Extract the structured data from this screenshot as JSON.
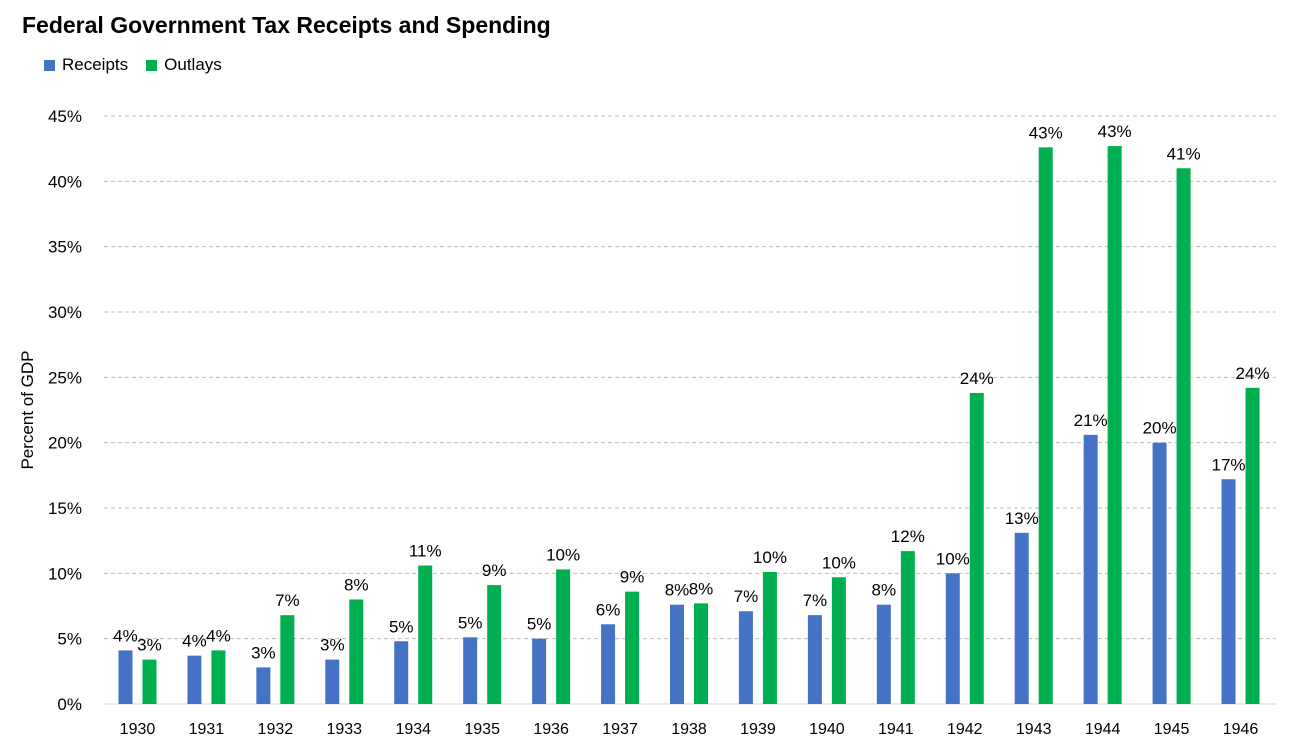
{
  "colors": {
    "receipts": "#4472C4",
    "outlays": "#00B050",
    "grid": "#BFBFBF"
  },
  "chart_data": {
    "type": "bar",
    "title": "Federal Government Tax Receipts and Spending",
    "ylabel": "Percent of GDP",
    "xlabel": "",
    "ylim": [
      0,
      45
    ],
    "yticks": [
      "0%",
      "5%",
      "10%",
      "15%",
      "20%",
      "25%",
      "30%",
      "35%",
      "40%",
      "45%"
    ],
    "grid": true,
    "legend_position": "top-left",
    "categories": [
      "1930",
      "1931",
      "1932",
      "1933",
      "1934",
      "1935",
      "1936",
      "1937",
      "1938",
      "1939",
      "1940",
      "1941",
      "1942",
      "1943",
      "1944",
      "1945",
      "1946"
    ],
    "series": [
      {
        "name": "Receipts",
        "values": [
          4.1,
          3.7,
          2.8,
          3.4,
          4.8,
          5.1,
          5.0,
          6.1,
          7.6,
          7.1,
          6.8,
          7.6,
          10.0,
          13.1,
          20.6,
          20.0,
          17.2
        ],
        "labels": [
          "4%",
          "4%",
          "3%",
          "3%",
          "5%",
          "5%",
          "5%",
          "6%",
          "8%",
          "7%",
          "7%",
          "8%",
          "10%",
          "13%",
          "21%",
          "20%",
          "17%"
        ]
      },
      {
        "name": "Outlays",
        "values": [
          3.4,
          4.1,
          6.8,
          8.0,
          10.6,
          9.1,
          10.3,
          8.6,
          7.7,
          10.1,
          9.7,
          11.7,
          23.8,
          42.6,
          42.7,
          41.0,
          24.2
        ],
        "labels": [
          "3%",
          "4%",
          "7%",
          "8%",
          "11%",
          "9%",
          "10%",
          "9%",
          "8%",
          "10%",
          "10%",
          "12%",
          "24%",
          "43%",
          "43%",
          "41%",
          "24%"
        ]
      }
    ]
  }
}
